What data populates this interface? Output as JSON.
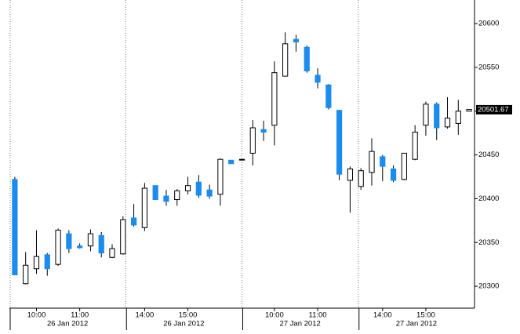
{
  "chart_data": {
    "type": "candlestick",
    "categories": [
      null,
      null,
      "10:00",
      null,
      null,
      null,
      "11:00",
      null,
      null,
      null,
      null,
      null,
      "14:00",
      null,
      null,
      null,
      "15:00",
      null,
      null,
      null,
      null,
      null,
      null,
      null,
      "10:00",
      null,
      null,
      null,
      "11:00",
      null,
      null,
      null,
      null,
      null,
      "14:00",
      null,
      null,
      null,
      "15:00",
      null,
      null,
      null,
      null
    ],
    "date_labels": [
      "26 Jan 2012",
      "26 Jan 2012",
      "27 Jan 2012",
      "27 Jan 2012"
    ],
    "open": [
      20422,
      20303,
      20320,
      20336,
      20325,
      20360,
      20346,
      20346,
      20358,
      20333,
      20337,
      20378,
      20367,
      20415,
      20403,
      20399,
      20409,
      20419,
      20410,
      20405,
      20444,
      20445,
      20452,
      20479,
      20484,
      20540,
      20582,
      20573,
      20541,
      20530,
      20501,
      20421,
      20414,
      20430,
      20448,
      20434,
      20422,
      20445,
      20484,
      20508,
      20482,
      20486,
      20500
    ],
    "high": [
      20425,
      20339,
      20364,
      20338,
      20366,
      20364,
      20349,
      20365,
      20362,
      20348,
      20380,
      20394,
      20418,
      20415,
      20410,
      20411,
      20425,
      20427,
      20416,
      20446,
      20444,
      20445,
      20490,
      20489,
      20557,
      20590,
      20587,
      20575,
      20549,
      20531,
      20501,
      20437,
      20435,
      20469,
      20450,
      20438,
      20452,
      20484,
      20511,
      20510,
      20516,
      20513,
      20502
    ],
    "low": [
      20313,
      20302,
      20314,
      20312,
      20323,
      20338,
      20343,
      20340,
      20333,
      20332,
      20336,
      20368,
      20363,
      20399,
      20392,
      20392,
      20405,
      20401,
      20400,
      20392,
      20440,
      20445,
      20438,
      20466,
      20461,
      20540,
      20568,
      20544,
      20526,
      20502,
      20421,
      20384,
      20410,
      20415,
      20420,
      20419,
      20421,
      20444,
      20472,
      20467,
      20480,
      20473,
      20500
    ],
    "close": [
      20313,
      20324,
      20334,
      20320,
      20364,
      20343,
      20344,
      20360,
      20338,
      20343,
      20376,
      20370,
      20412,
      20399,
      20397,
      20409,
      20415,
      20404,
      20403,
      20445,
      20440,
      20445,
      20481,
      20476,
      20544,
      20577,
      20579,
      20546,
      20533,
      20504,
      20428,
      20434,
      20432,
      20454,
      20437,
      20421,
      20452,
      20476,
      20508,
      20481,
      20492,
      20500,
      20502
    ],
    "up_color": "#ffffff",
    "down_color": "#1a8cf0",
    "last_price": 20501.67,
    "ylim": [
      20275,
      20627
    ],
    "yticks": [
      20300,
      20350,
      20400,
      20450,
      20500,
      20550,
      20600
    ]
  }
}
